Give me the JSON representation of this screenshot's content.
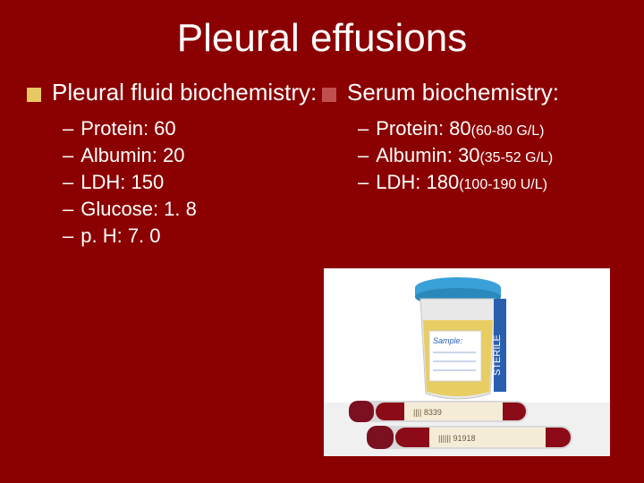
{
  "colors": {
    "background": "#8b0000",
    "text": "#ffffff",
    "bullet_left": "#e8c862",
    "bullet_right": "#c05050",
    "cup_lid": "#3aa0d8",
    "cup_body": "#e8e8e8",
    "cup_liquid": "#e8c84a",
    "cup_label": "#ffffff",
    "sterile_band": "#2a5fb0",
    "sterile_text": "#ffffff",
    "tube_cap": "#7a1020",
    "tube_blood": "#8b0c18",
    "tube_label": "#f5ecd8"
  },
  "title": "Pleural effusions",
  "left": {
    "heading": "Pleural fluid biochemistry:",
    "items": [
      {
        "label": "Protein: 60"
      },
      {
        "label": "Albumin: 20"
      },
      {
        "label": "LDH: 150"
      },
      {
        "label": "Glucose: 1. 8"
      },
      {
        "label": "p. H: 7. 0"
      }
    ]
  },
  "right": {
    "heading": "Serum biochemistry:",
    "items": [
      {
        "label": "Protein: 80 ",
        "range": "(60-80 G/L)"
      },
      {
        "label": "Albumin: 30 ",
        "range": "(35-52 G/L)"
      },
      {
        "label": "LDH: 180 ",
        "range": "(100-190 U/L)"
      }
    ]
  },
  "photo": {
    "sterile_text": "STERILE",
    "sample_text": "Sample:"
  }
}
